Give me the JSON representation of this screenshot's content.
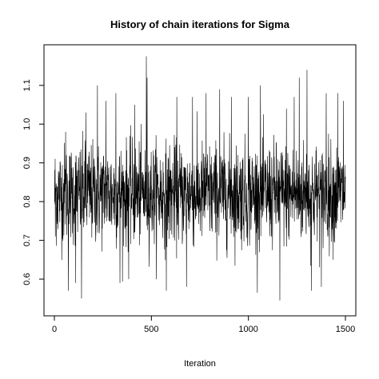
{
  "chart_data": {
    "type": "line",
    "title": "History of chain iterations for Sigma",
    "xlabel": "Iteration",
    "ylabel": "",
    "xlim": [
      0,
      1500
    ],
    "ylim": [
      0.53,
      1.18
    ],
    "x_ticks": [
      0,
      500,
      1000,
      1500
    ],
    "x_tick_labels": [
      "0",
      "500",
      "1000",
      "1500"
    ],
    "y_ticks": [
      0.6,
      0.7,
      0.8,
      0.9,
      1.0,
      1.1
    ],
    "y_tick_labels": [
      "0.6",
      "0.7",
      "0.8",
      "0.9",
      "1.0",
      "1.1"
    ],
    "grid": false,
    "legend": "none",
    "series": [
      {
        "color": "#000000",
        "n_iterations": 1500,
        "summary": {
          "center": 0.82,
          "min": 0.545,
          "max": 1.175
        },
        "notable_points": [
          {
            "x": 5,
            "y": 0.71
          },
          {
            "x": 58,
            "y": 0.98
          },
          {
            "x": 72,
            "y": 0.57
          },
          {
            "x": 110,
            "y": 0.59
          },
          {
            "x": 140,
            "y": 0.55
          },
          {
            "x": 163,
            "y": 1.03
          },
          {
            "x": 222,
            "y": 1.1
          },
          {
            "x": 266,
            "y": 1.06
          },
          {
            "x": 317,
            "y": 1.08
          },
          {
            "x": 338,
            "y": 0.59
          },
          {
            "x": 383,
            "y": 0.6
          },
          {
            "x": 414,
            "y": 1.05
          },
          {
            "x": 474,
            "y": 1.175
          },
          {
            "x": 478,
            "y": 1.12
          },
          {
            "x": 577,
            "y": 0.57
          },
          {
            "x": 631,
            "y": 1.07
          },
          {
            "x": 681,
            "y": 0.58
          },
          {
            "x": 712,
            "y": 1.07
          },
          {
            "x": 782,
            "y": 1.08
          },
          {
            "x": 852,
            "y": 1.09
          },
          {
            "x": 912,
            "y": 1.07
          },
          {
            "x": 1000,
            "y": 1.07
          },
          {
            "x": 1062,
            "y": 1.1
          },
          {
            "x": 1162,
            "y": 0.545
          },
          {
            "x": 1196,
            "y": 1.04
          },
          {
            "x": 1236,
            "y": 1.07
          },
          {
            "x": 1262,
            "y": 1.12
          },
          {
            "x": 1302,
            "y": 1.14
          },
          {
            "x": 1325,
            "y": 0.57
          },
          {
            "x": 1376,
            "y": 0.58
          },
          {
            "x": 1401,
            "y": 1.08
          },
          {
            "x": 1460,
            "y": 1.08
          },
          {
            "x": 1490,
            "y": 1.06
          }
        ]
      }
    ]
  }
}
